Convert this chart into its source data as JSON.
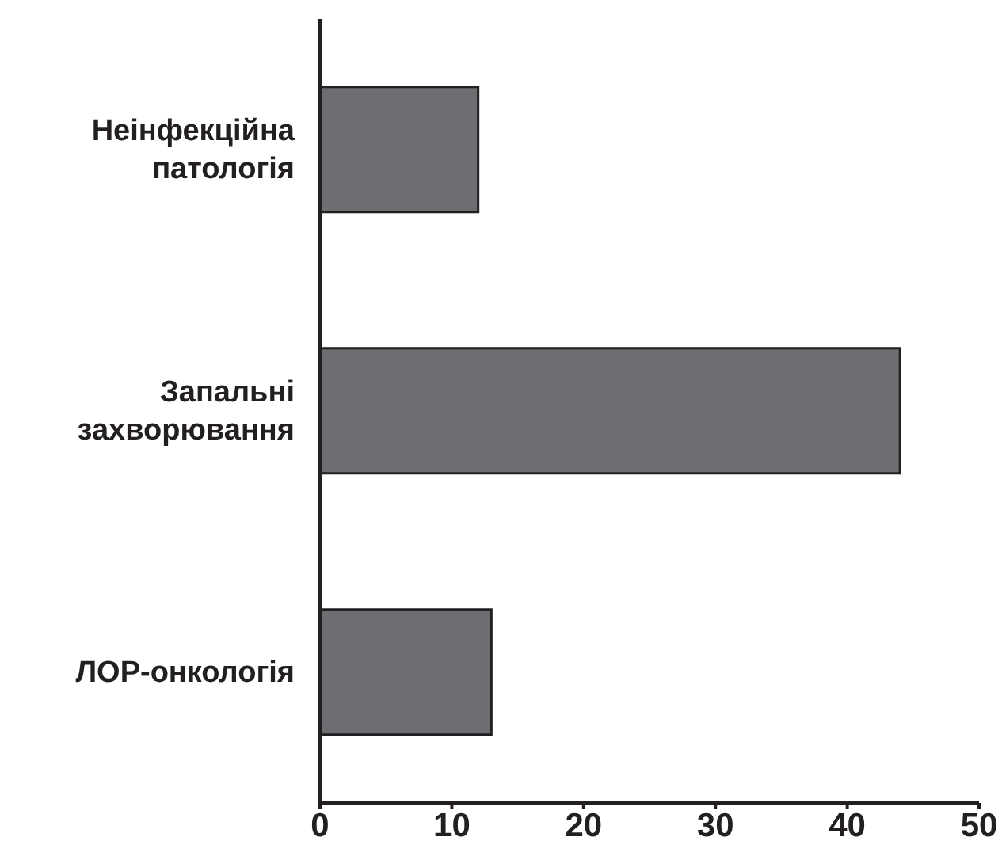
{
  "chart_data": {
    "type": "bar",
    "orientation": "horizontal",
    "categories": [
      "Неінфекційна патологія",
      "Запальні захворювання",
      "ЛОР-онкологія"
    ],
    "values": [
      12,
      44,
      13
    ],
    "color": "#6d6e71",
    "xlim": [
      0,
      50
    ],
    "xticks": [
      0,
      10,
      20,
      30,
      40,
      50
    ],
    "grid": false,
    "legend": false
  }
}
